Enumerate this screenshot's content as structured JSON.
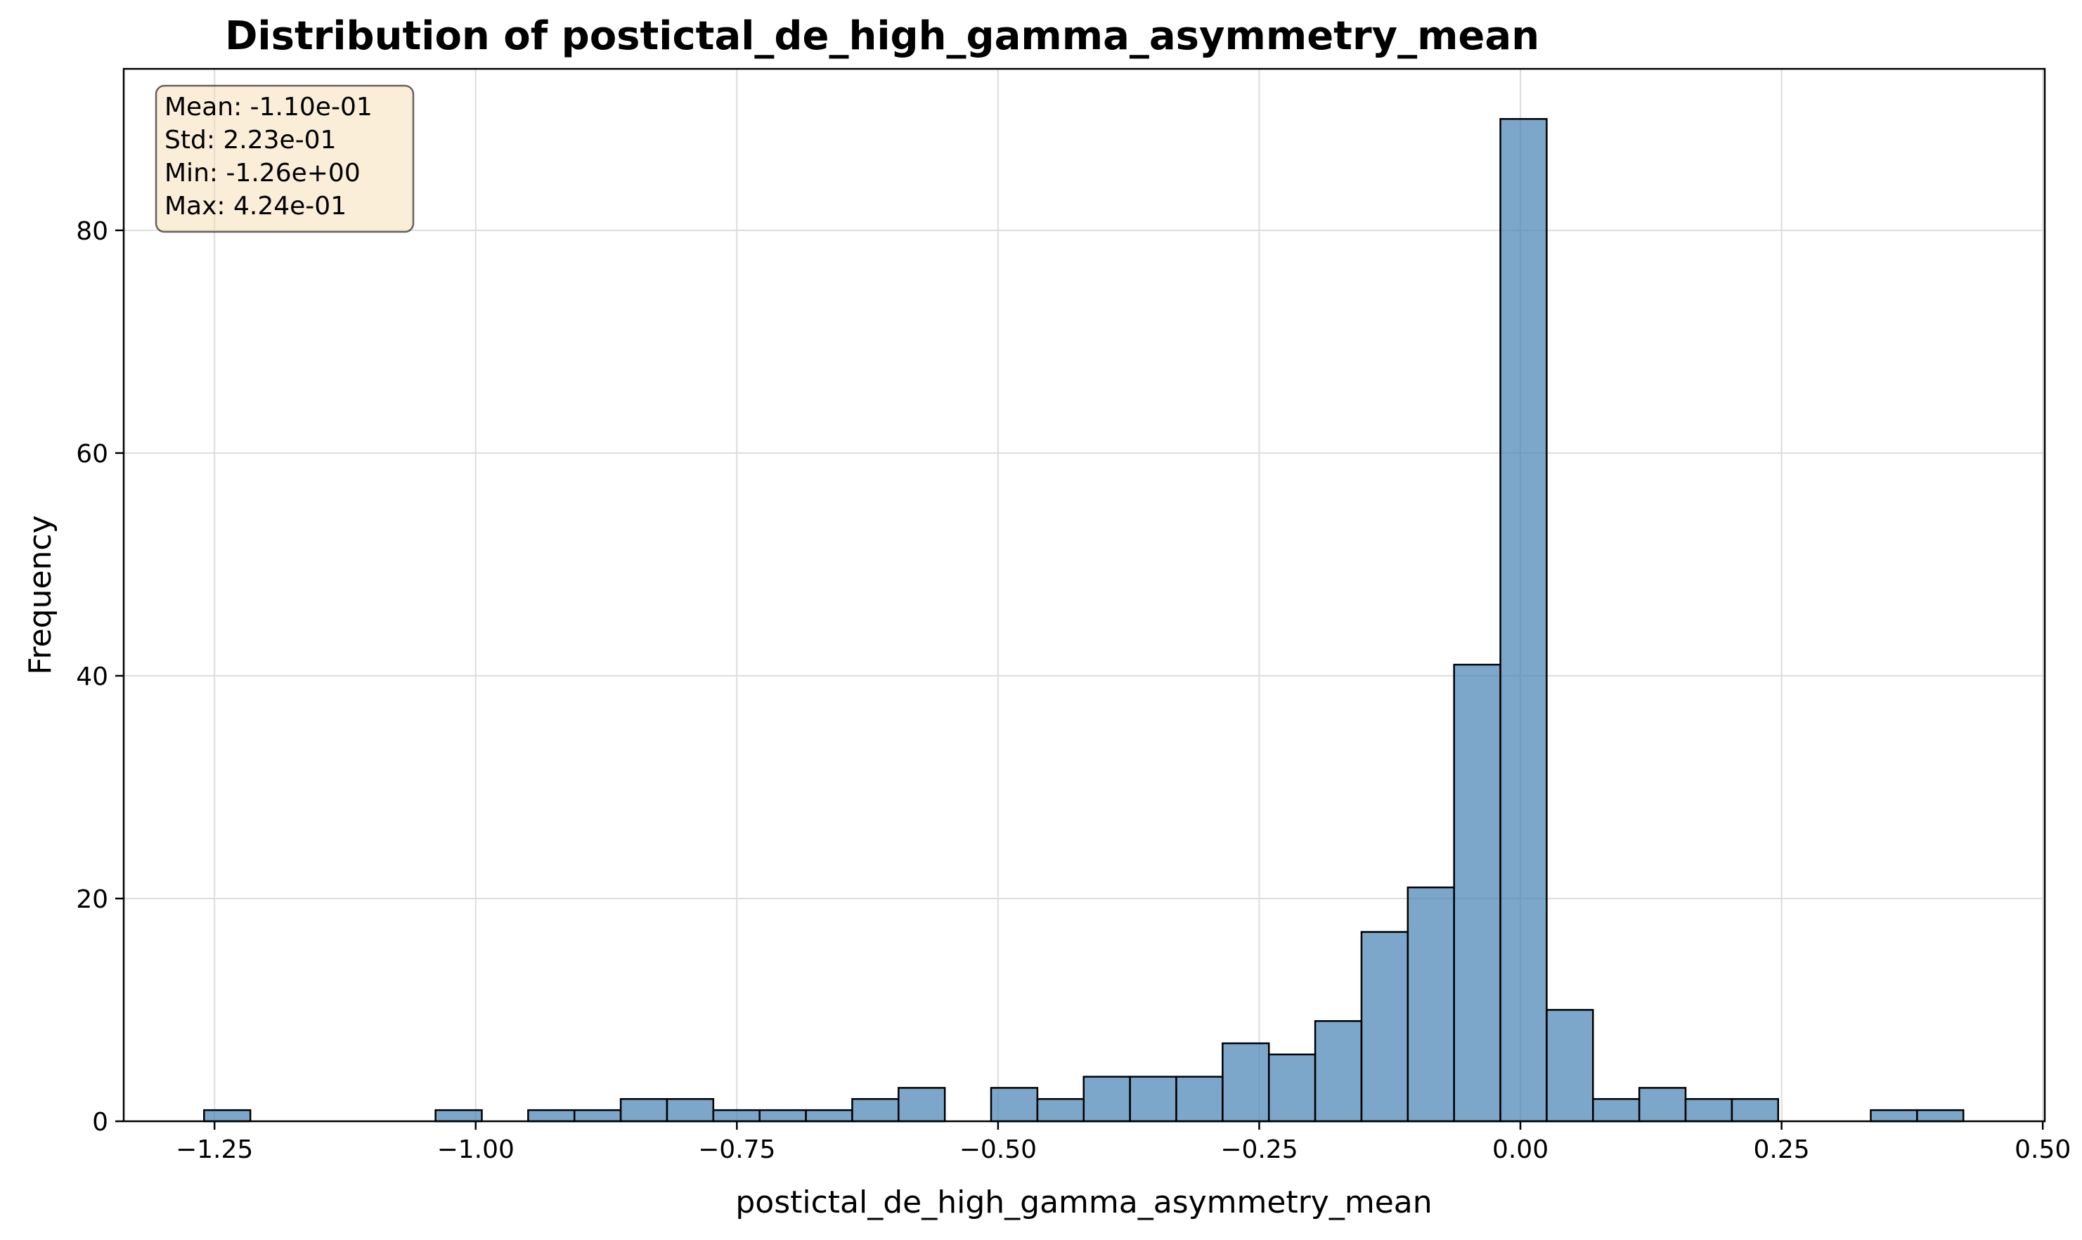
{
  "chart_data": {
    "type": "bar",
    "title": "Distribution of postictal_de_high_gamma_asymmetry_mean",
    "xlabel": "postictal_de_high_gamma_asymmetry_mean",
    "ylabel": "Frequency",
    "xlim": [
      -1.3369,
      0.5019
    ],
    "ylim": [
      0,
      94.5
    ],
    "xticks": [
      -1.25,
      -1.0,
      -0.75,
      -0.5,
      -0.25,
      0.0,
      0.25,
      0.5
    ],
    "xtick_labels": [
      "−1.25",
      "−1.00",
      "−0.75",
      "−0.50",
      "−0.25",
      "0.00",
      "0.25",
      "0.50"
    ],
    "yticks": [
      0,
      20,
      40,
      60,
      80
    ],
    "ytick_labels": [
      "0",
      "20",
      "40",
      "60",
      "80"
    ],
    "grid": true,
    "bin_range": [
      -1.26,
      0.424
    ],
    "counts": [
      1,
      0,
      0,
      0,
      0,
      1,
      0,
      1,
      1,
      2,
      2,
      1,
      1,
      1,
      2,
      3,
      0,
      3,
      2,
      4,
      4,
      4,
      7,
      6,
      9,
      17,
      21,
      41,
      90,
      10,
      2,
      3,
      2,
      2,
      0,
      0,
      1,
      1
    ],
    "colors": {
      "bar_fill": "#4682b4",
      "bar_fill_opacity": 0.7,
      "bar_edge": "#000000",
      "stats_box_fill": "#f5deb3",
      "grid": "#dddddd"
    },
    "stats_box": {
      "placement": "top-left",
      "lines": [
        "Mean: -1.10e-01",
        "Std: 2.23e-01",
        "Min: -1.26e+00",
        "Max: 4.24e-01"
      ]
    }
  }
}
